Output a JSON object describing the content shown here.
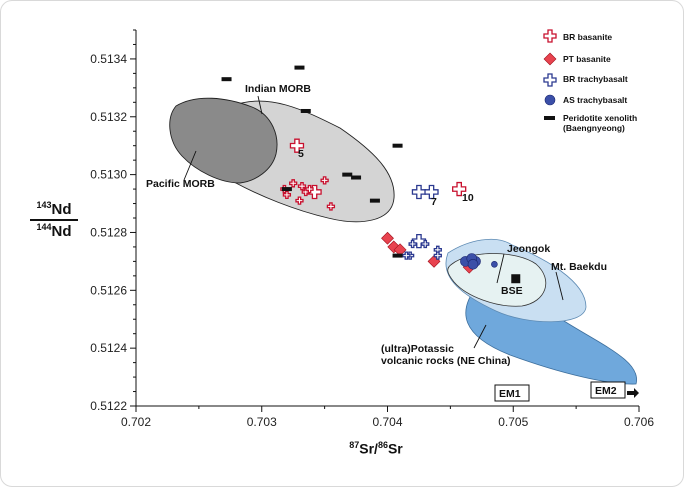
{
  "chart_data": {
    "type": "scatter",
    "xlabel": {
      "sup1": "87",
      "main1": "Sr/",
      "sup2": "86",
      "main2": "Sr"
    },
    "ylabel": {
      "top_sup": "143",
      "top": "Nd",
      "bottom_sup": "144",
      "bottom": "Nd"
    },
    "xlim": [
      0.702,
      0.706
    ],
    "ylim": [
      0.5122,
      0.5135
    ],
    "x_ticks": [
      "0.702",
      "0.703",
      "0.704",
      "0.705",
      "0.706"
    ],
    "x_tick_values": [
      0.702,
      0.703,
      0.704,
      0.705,
      0.706
    ],
    "y_ticks": [
      "0.5122",
      "0.5124",
      "0.5126",
      "0.5128",
      "0.5130",
      "0.5132",
      "0.5134"
    ],
    "y_tick_values": [
      0.5122,
      0.5124,
      0.5126,
      0.5128,
      0.513,
      0.5132,
      0.5134
    ],
    "legend": [
      {
        "name": "BR basanite",
        "marker": "cross-open",
        "color": "#c8102e"
      },
      {
        "name": "PT basanite",
        "marker": "diamond",
        "color": "#e8434f"
      },
      {
        "name": "BR trachybasalt",
        "marker": "cross-open",
        "color": "#2b3990"
      },
      {
        "name": "AS trachybasalt",
        "marker": "circle",
        "color": "#3b4fa8"
      },
      {
        "name": "Peridotite xenolith",
        "name2": "(Baengnyeong)",
        "marker": "dash",
        "color": "#111111"
      }
    ],
    "fields": [
      {
        "label": "Pacific MORB",
        "fill": "#8a8a8a"
      },
      {
        "label": "Indian MORB",
        "fill": "#d4d4d4"
      },
      {
        "label": "(ultra)Potassic",
        "label2": "volcanic rocks (NE China)",
        "fill": "#6fa8dc"
      },
      {
        "label": "Mt. Baekdu",
        "fill": "#c9dff2"
      },
      {
        "label": "Jeongok",
        "fill": "#e6f2f2"
      }
    ],
    "reference_labels": {
      "bse": "BSE",
      "em1": "EM1",
      "em2": "EM2"
    },
    "sample_labels": {
      "s5": "5",
      "s7": "7",
      "s10": "10"
    },
    "series": [
      {
        "name": "BR basanite",
        "size": "large",
        "points": [
          [
            0.70328,
            0.5131
          ],
          [
            0.70342,
            0.51294
          ],
          [
            0.70457,
            0.51295
          ]
        ]
      },
      {
        "name": "BR basanite",
        "size": "small",
        "points": [
          [
            0.7032,
            0.51293
          ],
          [
            0.70332,
            0.51296
          ],
          [
            0.70318,
            0.51295
          ],
          [
            0.70335,
            0.51294
          ],
          [
            0.7033,
            0.51291
          ],
          [
            0.7035,
            0.51298
          ],
          [
            0.70355,
            0.51289
          ],
          [
            0.70338,
            0.51295
          ],
          [
            0.70325,
            0.51297
          ]
        ]
      },
      {
        "name": "PT basanite",
        "points": [
          [
            0.704,
            0.51278
          ],
          [
            0.70405,
            0.51275
          ],
          [
            0.7041,
            0.51274
          ],
          [
            0.70437,
            0.5127
          ],
          [
            0.70465,
            0.51268
          ]
        ]
      },
      {
        "name": "BR trachybasalt",
        "size": "large",
        "points": [
          [
            0.70425,
            0.51294
          ],
          [
            0.70435,
            0.51294
          ],
          [
            0.70425,
            0.51277
          ]
        ]
      },
      {
        "name": "BR trachybasalt",
        "size": "small",
        "points": [
          [
            0.7042,
            0.51276
          ],
          [
            0.7043,
            0.51276
          ],
          [
            0.70418,
            0.51272
          ],
          [
            0.7044,
            0.51274
          ],
          [
            0.7044,
            0.51272
          ],
          [
            0.70415,
            0.51272
          ]
        ]
      },
      {
        "name": "AS trachybasalt",
        "points": [
          [
            0.70462,
            0.5127
          ],
          [
            0.7047,
            0.5127
          ],
          [
            0.70467,
            0.51271
          ],
          [
            0.70468,
            0.51269
          ],
          [
            0.70485,
            0.51269
          ]
        ]
      },
      {
        "name": "Peridotite xenolith",
        "points": [
          [
            0.70272,
            0.51333
          ],
          [
            0.7033,
            0.51337
          ],
          [
            0.70335,
            0.51322
          ],
          [
            0.70408,
            0.5131
          ],
          [
            0.70368,
            0.513
          ],
          [
            0.70375,
            0.51299
          ],
          [
            0.7032,
            0.51295
          ],
          [
            0.7039,
            0.51291
          ],
          [
            0.70408,
            0.51272
          ]
        ]
      }
    ],
    "bse_point": [
      0.70502,
      0.51264
    ]
  }
}
